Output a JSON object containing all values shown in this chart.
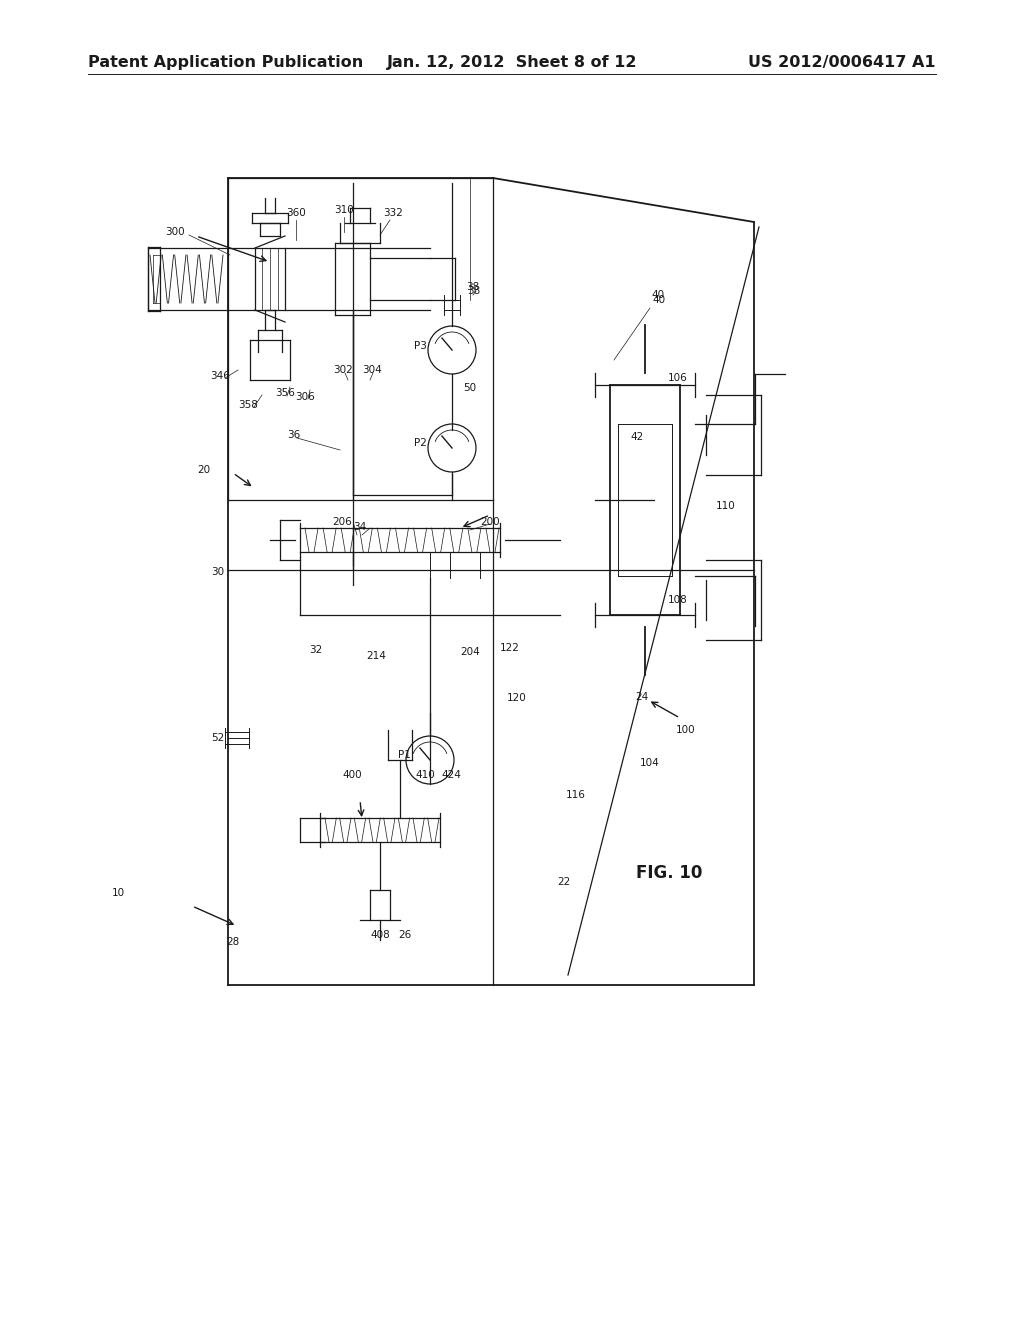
{
  "background_color": "#ffffff",
  "header_left": "Patent Application Publication",
  "header_center": "Jan. 12, 2012  Sheet 8 of 12",
  "header_right": "US 2012/0006417 A1",
  "figure_label": "FIG. 10",
  "drawing_color": "#1a1a1a",
  "label_color": "#1a1a1a",
  "header_fontsize": 11.5,
  "label_fontsize": 7.5,
  "fig_label_fontsize": 12
}
